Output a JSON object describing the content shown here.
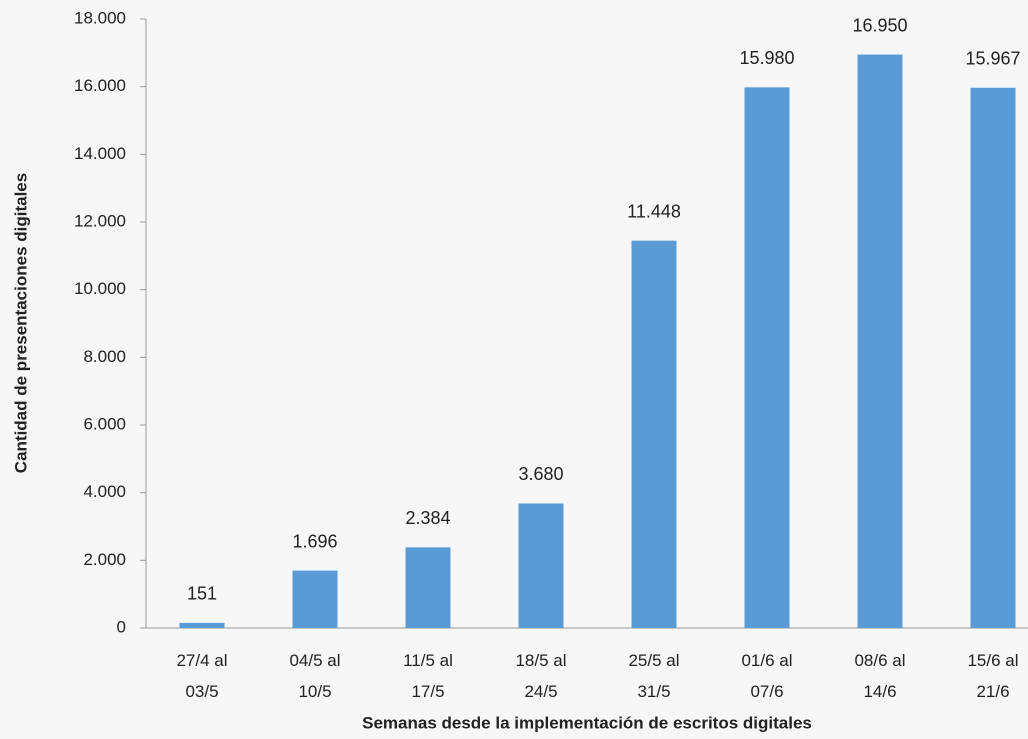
{
  "chart_data": {
    "type": "bar",
    "x_label": "Semanas desde la implementación de escritos digitales",
    "y_label": "Cantidad de presentaciones digitales",
    "categories": [
      "27/4 al 03/5",
      "04/5 al 10/5",
      "11/5 al 17/5",
      "18/5 al 24/5",
      "25/5 al 31/5",
      "01/6 al 07/6",
      "08/6 al 14/6",
      "15/6 al 21/6"
    ],
    "values": [
      151,
      1696,
      2384,
      3680,
      11448,
      15980,
      16950,
      15967
    ],
    "value_labels": [
      "151",
      "1.696",
      "2.384",
      "3.680",
      "11.448",
      "15.980",
      "16.950",
      "15.967"
    ],
    "color": "#5b9bd5",
    "ylim": [
      0,
      18000
    ],
    "yticks": [
      0,
      {
        "value": 2000,
        "label": "2.000"
      },
      {
        "value": 4000,
        "label": "4.000"
      },
      {
        "value": 6000,
        "label": "6.000"
      },
      {
        "value": 8000,
        "label": "8.000"
      },
      {
        "value": 10000,
        "label": "10.000"
      },
      {
        "value": 12000,
        "label": "12.000"
      },
      {
        "value": 14000,
        "label": "14.000"
      },
      {
        "value": 16000,
        "label": "16.000"
      },
      {
        "value": 18000,
        "label": "18.000"
      }
    ],
    "grid": false
  }
}
